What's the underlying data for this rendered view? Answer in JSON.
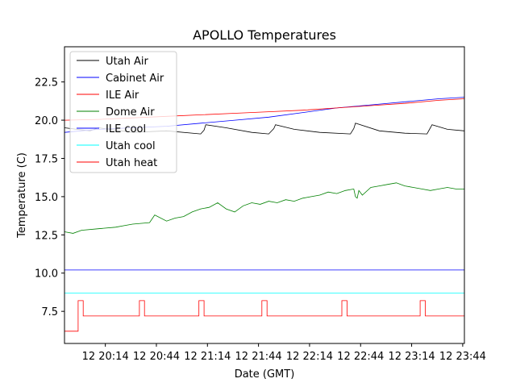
{
  "chart_data": {
    "type": "line",
    "title": "APOLLO Temperatures",
    "xlabel": "Date (GMT)",
    "ylabel": "Temperature (C)",
    "x_unit": "minutes since 12 20:00 GMT",
    "xlim": [
      -10,
      225
    ],
    "ylim": [
      5.4,
      24.8
    ],
    "grid": false,
    "legend_position": "top-left",
    "xticks": [
      {
        "value": 14,
        "label": "12 20:14"
      },
      {
        "value": 44,
        "label": "12 20:44"
      },
      {
        "value": 74,
        "label": "12 21:14"
      },
      {
        "value": 104,
        "label": "12 21:44"
      },
      {
        "value": 134,
        "label": "12 22:14"
      },
      {
        "value": 164,
        "label": "12 22:44"
      },
      {
        "value": 194,
        "label": "12 23:14"
      },
      {
        "value": 224,
        "label": "12 23:44"
      }
    ],
    "yticks": [
      {
        "value": 7.5,
        "label": "7.5"
      },
      {
        "value": 10.0,
        "label": "10.0"
      },
      {
        "value": 12.5,
        "label": "12.5"
      },
      {
        "value": 15.0,
        "label": "15.0"
      },
      {
        "value": 17.5,
        "label": "17.5"
      },
      {
        "value": 20.0,
        "label": "20.0"
      },
      {
        "value": 22.5,
        "label": "22.5"
      }
    ],
    "series": [
      {
        "name": "Utah Air",
        "color": "#000000",
        "x": [
          -10,
          5,
          10,
          30,
          50,
          70,
          72,
          73,
          85,
          100,
          110,
          113,
          114,
          125,
          140,
          158,
          160,
          161,
          175,
          190,
          203,
          205,
          206,
          215,
          225
        ],
        "y": [
          19.5,
          19.3,
          19.5,
          19.2,
          19.3,
          19.1,
          19.35,
          19.7,
          19.5,
          19.2,
          19.1,
          19.45,
          19.7,
          19.4,
          19.2,
          19.1,
          19.45,
          19.8,
          19.3,
          19.15,
          19.1,
          19.5,
          19.7,
          19.4,
          19.3
        ]
      },
      {
        "name": "Cabinet Air",
        "color": "#0000ff",
        "x": [
          -10,
          10,
          30,
          50,
          70,
          90,
          110,
          130,
          150,
          170,
          190,
          210,
          225
        ],
        "y": [
          19.2,
          19.4,
          19.5,
          19.6,
          19.8,
          20.0,
          20.2,
          20.5,
          20.8,
          21.0,
          21.2,
          21.4,
          21.5
        ]
      },
      {
        "name": "ILE Air",
        "color": "#ff0000",
        "x": [
          -10,
          10,
          30,
          50,
          70,
          90,
          110,
          130,
          150,
          170,
          190,
          210,
          225
        ],
        "y": [
          20.0,
          20.05,
          20.15,
          20.25,
          20.35,
          20.45,
          20.55,
          20.65,
          20.8,
          20.95,
          21.1,
          21.3,
          21.4
        ]
      },
      {
        "name": "Dome Air",
        "color": "#008000",
        "x": [
          -10,
          -5,
          0,
          10,
          20,
          25,
          30,
          40,
          43,
          50,
          55,
          60,
          65,
          70,
          75,
          80,
          85,
          90,
          95,
          100,
          105,
          110,
          115,
          120,
          125,
          130,
          135,
          140,
          145,
          150,
          155,
          160,
          161,
          162,
          163,
          165,
          170,
          175,
          180,
          185,
          190,
          195,
          200,
          205,
          210,
          215,
          220,
          225
        ],
        "y": [
          12.7,
          12.6,
          12.8,
          12.9,
          13.0,
          13.1,
          13.2,
          13.3,
          13.8,
          13.4,
          13.6,
          13.7,
          14.0,
          14.2,
          14.3,
          14.6,
          14.2,
          14.0,
          14.4,
          14.6,
          14.5,
          14.7,
          14.6,
          14.8,
          14.7,
          14.9,
          15.0,
          15.1,
          15.3,
          15.2,
          15.4,
          15.5,
          15.0,
          14.9,
          15.4,
          15.1,
          15.6,
          15.7,
          15.8,
          15.9,
          15.7,
          15.6,
          15.5,
          15.4,
          15.5,
          15.6,
          15.5,
          15.5
        ]
      },
      {
        "name": "ILE cool",
        "color": "#0000ff",
        "x": [
          -10,
          225
        ],
        "y": [
          10.2,
          10.2
        ]
      },
      {
        "name": "Utah cool",
        "color": "#00ffff",
        "x": [
          -10,
          225
        ],
        "y": [
          8.7,
          8.7
        ]
      },
      {
        "name": "Utah heat",
        "color": "#ff0000",
        "x": [
          -10,
          -2,
          -2,
          1,
          1,
          34,
          34,
          37,
          37,
          69,
          69,
          72,
          72,
          106,
          106,
          109,
          109,
          153,
          153,
          156,
          156,
          199,
          199,
          202,
          202,
          225
        ],
        "y": [
          6.2,
          6.2,
          8.2,
          8.2,
          7.2,
          7.2,
          8.2,
          8.2,
          7.2,
          7.2,
          8.2,
          8.2,
          7.2,
          7.2,
          8.2,
          8.2,
          7.2,
          7.2,
          8.2,
          8.2,
          7.2,
          7.2,
          8.2,
          8.2,
          7.2,
          7.2
        ]
      }
    ]
  }
}
